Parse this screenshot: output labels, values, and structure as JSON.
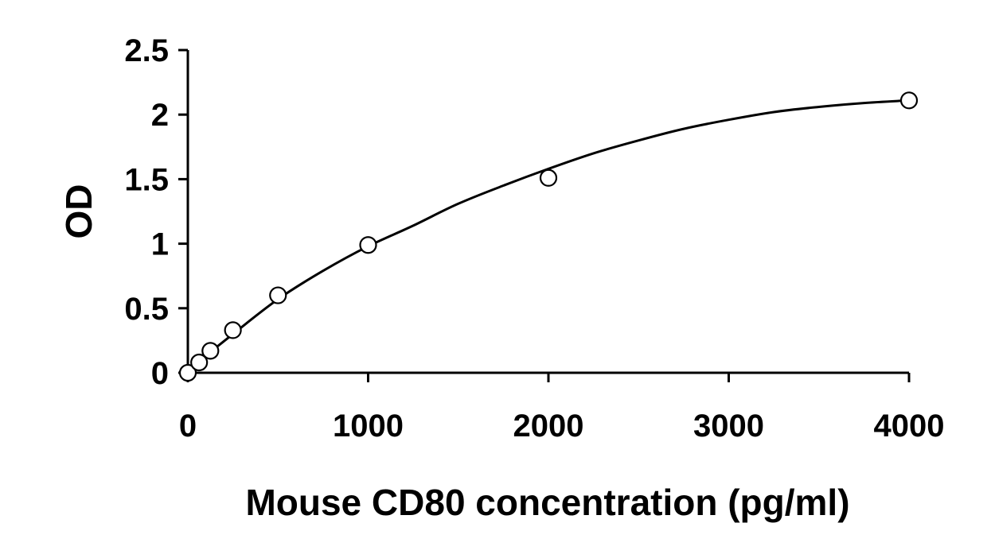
{
  "chart_data": {
    "type": "scatter",
    "title": "",
    "xlabel": "Mouse CD80 concentration (pg/ml)",
    "ylabel": "OD",
    "xlim": [
      0,
      4000
    ],
    "ylim": [
      0,
      2.5
    ],
    "x_ticks": [
      "0",
      "1000",
      "2000",
      "3000",
      "4000"
    ],
    "y_ticks": [
      "0",
      "0.5",
      "1",
      "1.5",
      "2",
      "2.5"
    ],
    "grid": false,
    "legend": "none",
    "series": [
      {
        "kind": "points",
        "marker": "open-circle",
        "x": [
          0,
          62.5,
          125,
          250,
          500,
          1000,
          2000,
          4000
        ],
        "y": [
          0.0,
          0.08,
          0.17,
          0.33,
          0.6,
          0.99,
          1.51,
          2.11
        ]
      },
      {
        "kind": "fit-curve",
        "x": [
          0,
          250,
          500,
          750,
          1000,
          1250,
          1500,
          1750,
          2000,
          2250,
          2500,
          2750,
          3000,
          3250,
          3500,
          3750,
          4000
        ],
        "y": [
          0.02,
          0.3,
          0.57,
          0.79,
          0.98,
          1.14,
          1.31,
          1.45,
          1.58,
          1.7,
          1.8,
          1.89,
          1.96,
          2.02,
          2.06,
          2.09,
          2.11
        ]
      }
    ],
    "colors": {
      "axis": "#000000",
      "marker_stroke": "#000000",
      "marker_fill": "#ffffff",
      "curve": "#000000"
    }
  }
}
